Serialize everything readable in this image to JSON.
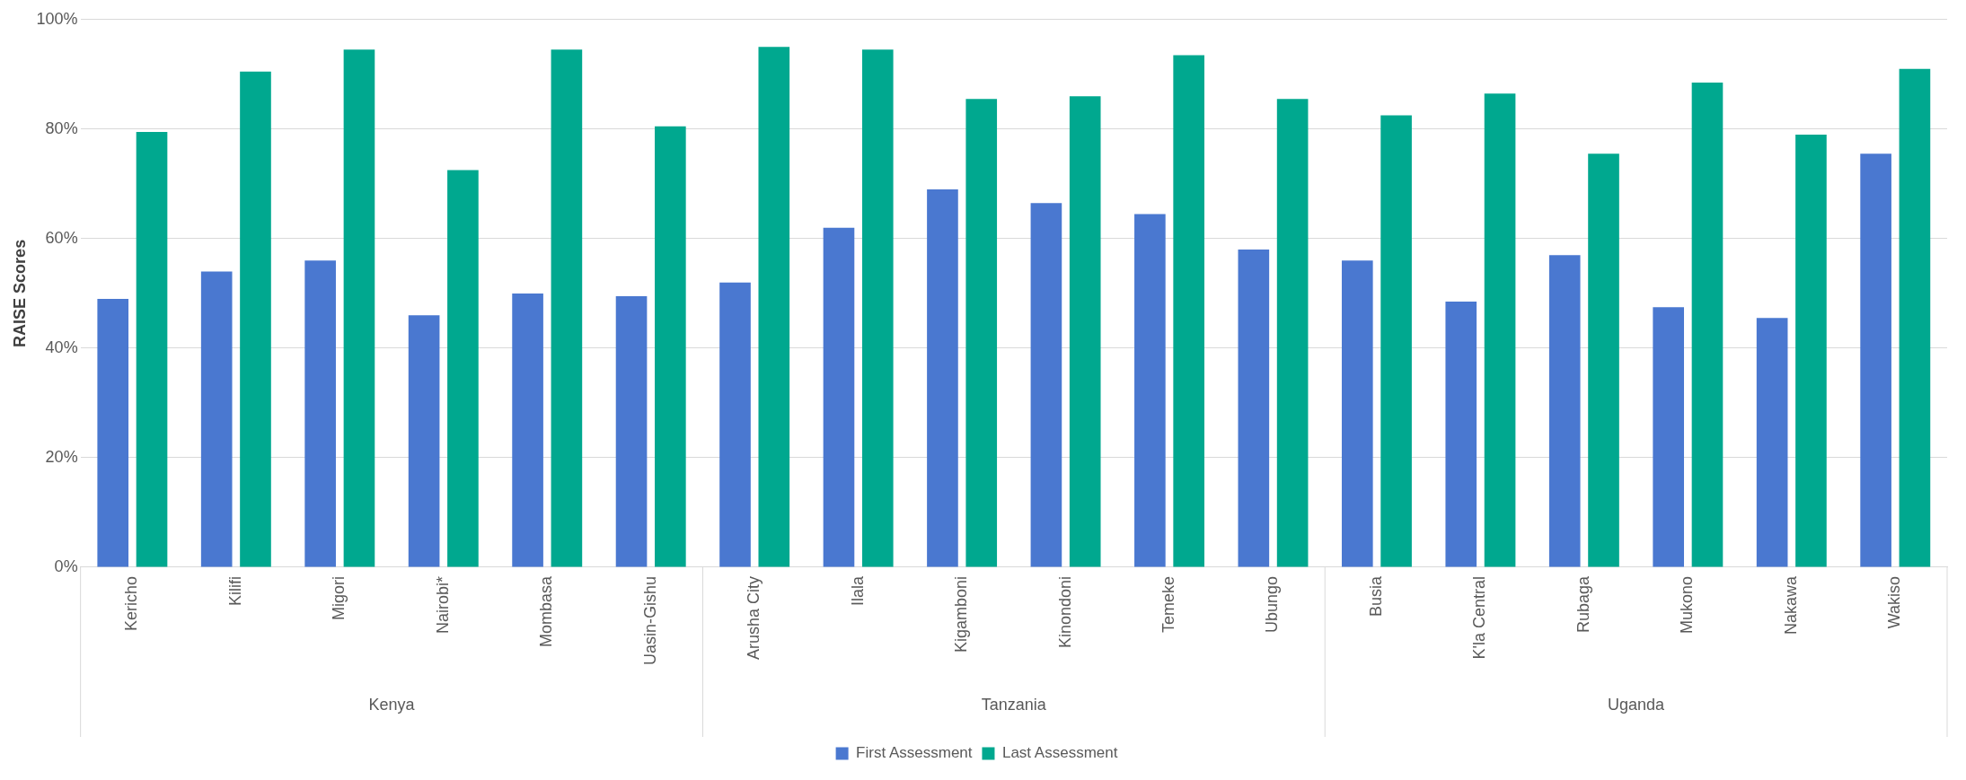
{
  "chart_data": {
    "type": "bar",
    "ylabel": "RAISE Scores",
    "categories": [
      "Kericho",
      "Kilifi",
      "Migori",
      "Nairobi*",
      "Mombasa",
      "Uasin-Gishu",
      "Arusha City",
      "Ilala",
      "Kigamboni",
      "Kinondoni",
      "Temeke",
      "Ubungo",
      "Busia",
      "K'la Central",
      "Rubaga",
      "Mukono",
      "Nakawa",
      "Wakiso"
    ],
    "series": [
      {
        "name": "First Assessment",
        "color": "#4a78d0",
        "values": [
          49,
          54,
          56,
          46,
          50,
          49.5,
          52,
          62,
          69,
          66.5,
          64.5,
          58,
          56,
          48.5,
          57,
          47.5,
          45.5,
          75.5
        ]
      },
      {
        "name": "Last Assessment",
        "color": "#00a88f",
        "values": [
          79.5,
          90.5,
          94.5,
          72.5,
          94.5,
          80.5,
          95,
          94.5,
          85.5,
          86,
          93.5,
          85.5,
          82.5,
          86.5,
          75.5,
          88.5,
          79,
          91
        ]
      }
    ],
    "ylim": [
      0,
      100
    ],
    "yticks": [
      {
        "value": 0,
        "label": "0%"
      },
      {
        "value": 20,
        "label": "20%"
      },
      {
        "value": 40,
        "label": "40%"
      },
      {
        "value": 60,
        "label": "60%"
      },
      {
        "value": 80,
        "label": "80%"
      },
      {
        "value": 100,
        "label": "100%"
      }
    ],
    "annotations": [
      "Kenya",
      "Tanzania",
      "Uganda"
    ],
    "grid": "y",
    "legend": "bottom"
  }
}
